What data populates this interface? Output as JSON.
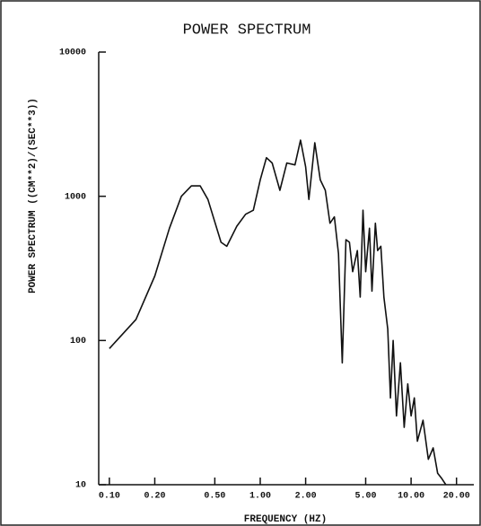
{
  "chart_data": {
    "type": "line",
    "title": "POWER SPECTRUM",
    "x_label": "FREQUENCY (HZ)",
    "y_label": "POWER SPECTRUM   ((CM**2)/(SEC**3))",
    "log_x": true,
    "log_y": true,
    "color": "#111111",
    "x": [
      0.1,
      0.15,
      0.2,
      0.25,
      0.3,
      0.35,
      0.4,
      0.45,
      0.55,
      0.6,
      0.7,
      0.8,
      0.9,
      1.0,
      1.1,
      1.2,
      1.35,
      1.5,
      1.7,
      1.85,
      2.0,
      2.1,
      2.3,
      2.5,
      2.7,
      2.9,
      3.1,
      3.3,
      3.5,
      3.7,
      3.9,
      4.1,
      4.4,
      4.6,
      4.8,
      5.0,
      5.3,
      5.5,
      5.8,
      6.0,
      6.3,
      6.6,
      7.0,
      7.3,
      7.6,
      8.0,
      8.5,
      9.0,
      9.5,
      10,
      10.5,
      11,
      12,
      13,
      14,
      15,
      16,
      17
    ],
    "values": [
      88,
      140,
      280,
      600,
      1000,
      1180,
      1180,
      950,
      480,
      450,
      620,
      750,
      800,
      1300,
      1850,
      1700,
      1100,
      1700,
      1650,
      2450,
      1600,
      950,
      2350,
      1300,
      1100,
      650,
      720,
      400,
      70,
      500,
      480,
      300,
      420,
      200,
      800,
      300,
      600,
      220,
      650,
      420,
      450,
      200,
      120,
      40,
      100,
      30,
      70,
      25,
      50,
      30,
      40,
      20,
      28,
      15,
      18,
      12,
      11,
      10
    ],
    "xlim": [
      0.085,
      25
    ],
    "ylim": [
      10,
      10000
    ],
    "xticks": [
      {
        "value": 0.1,
        "label": "0.10"
      },
      {
        "value": 0.2,
        "label": "0.20"
      },
      {
        "value": 0.5,
        "label": "0.50"
      },
      {
        "value": 1,
        "label": "1.00"
      },
      {
        "value": 2,
        "label": "2.00"
      },
      {
        "value": 5,
        "label": "5.00"
      },
      {
        "value": 10,
        "label": "10.00"
      },
      {
        "value": 20,
        "label": "20.00"
      }
    ],
    "yticks": [
      10,
      100,
      1000,
      10000
    ]
  }
}
